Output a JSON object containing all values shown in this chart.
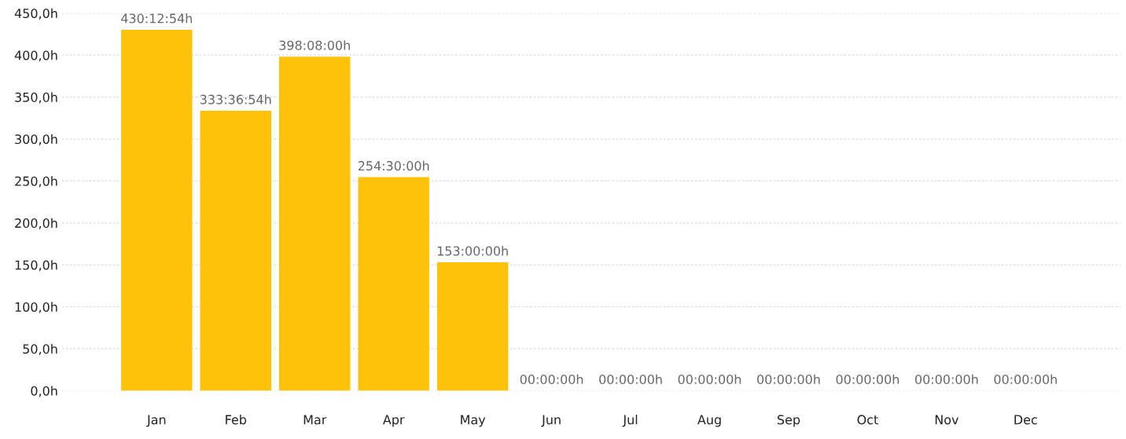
{
  "chart_data": {
    "type": "bar",
    "categories": [
      "Jan",
      "Feb",
      "Mar",
      "Apr",
      "May",
      "Jun",
      "Jul",
      "Aug",
      "Sep",
      "Oct",
      "Nov",
      "Dec"
    ],
    "values": [
      430.215,
      333.615,
      398.133,
      254.5,
      153,
      0,
      0,
      0,
      0,
      0,
      0,
      0
    ],
    "value_labels": [
      "430:12:54h",
      "333:36:54h",
      "398:08:00h",
      "254:30:00h",
      "153:00:00h",
      "00:00:00h",
      "00:00:00h",
      "00:00:00h",
      "00:00:00h",
      "00:00:00h",
      "00:00:00h",
      "00:00:00h"
    ],
    "color": "#fdc209",
    "ylim": [
      0,
      450
    ],
    "yticks": [
      {
        "value": 0,
        "label": "0,0h"
      },
      {
        "value": 50,
        "label": "50,0h"
      },
      {
        "value": 100,
        "label": "100,0h"
      },
      {
        "value": 150,
        "label": "150,0h"
      },
      {
        "value": 200,
        "label": "200,0h"
      },
      {
        "value": 250,
        "label": "250,0h"
      },
      {
        "value": 300,
        "label": "300,0h"
      },
      {
        "value": 350,
        "label": "350,0h"
      },
      {
        "value": 400,
        "label": "400,0h"
      },
      {
        "value": 450,
        "label": "450,0h"
      }
    ],
    "grid": "y"
  }
}
